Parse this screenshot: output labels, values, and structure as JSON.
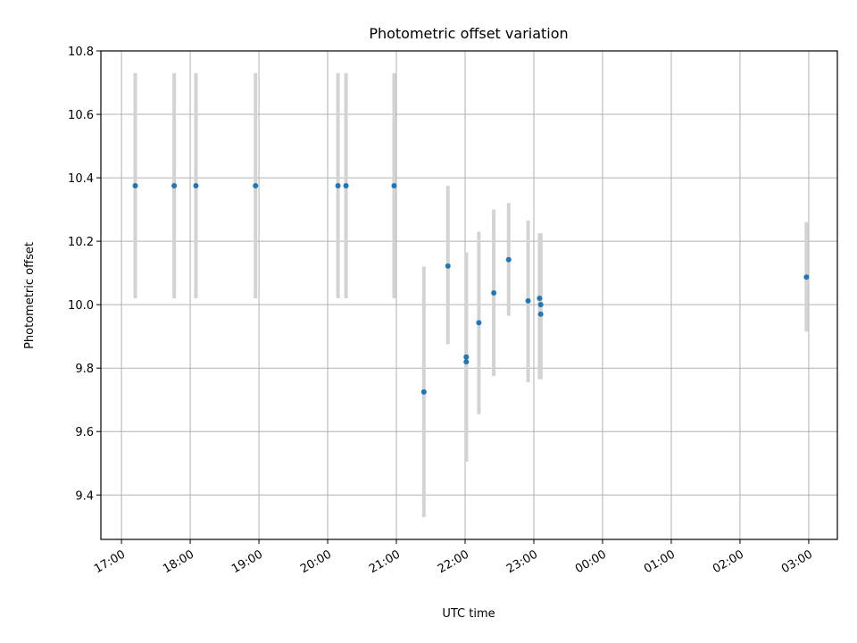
{
  "chart_data": {
    "type": "scatter",
    "title": "Photometric offset variation",
    "xlabel": "UTC time",
    "ylabel": "Photometric offset",
    "x_tick_labels": [
      "17:00",
      "18:00",
      "19:00",
      "20:00",
      "21:00",
      "22:00",
      "23:00",
      "00:00",
      "01:00",
      "02:00",
      "03:00"
    ],
    "y_ticks": [
      9.4,
      9.6,
      9.8,
      10.0,
      10.2,
      10.4,
      10.6,
      10.8
    ],
    "xlim": [
      "16:42",
      "03:25"
    ],
    "ylim": [
      9.26,
      10.8
    ],
    "grid": true,
    "colors": {
      "point": "#1f77b4",
      "errorbar": "#d3d3d3",
      "grid": "#b0b0b0"
    },
    "points": [
      {
        "x": "17:12",
        "y": 10.375,
        "ylo": 10.02,
        "yhi": 10.73
      },
      {
        "x": "17:46",
        "y": 10.375,
        "ylo": 10.02,
        "yhi": 10.73
      },
      {
        "x": "18:05",
        "y": 10.375,
        "ylo": 10.02,
        "yhi": 10.73
      },
      {
        "x": "18:57",
        "y": 10.375,
        "ylo": 10.02,
        "yhi": 10.73
      },
      {
        "x": "20:09",
        "y": 10.375,
        "ylo": 10.02,
        "yhi": 10.73
      },
      {
        "x": "20:16",
        "y": 10.375,
        "ylo": 10.02,
        "yhi": 10.73
      },
      {
        "x": "20:58",
        "y": 10.375,
        "ylo": 10.02,
        "yhi": 10.73
      },
      {
        "x": "21:24",
        "y": 9.725,
        "ylo": 9.33,
        "yhi": 10.12
      },
      {
        "x": "21:45",
        "y": 10.122,
        "ylo": 9.875,
        "yhi": 10.375
      },
      {
        "x": "22:01",
        "y": 9.835,
        "ylo": 9.505,
        "yhi": 10.165
      },
      {
        "x": "22:01",
        "y": 9.82,
        "ylo": 9.505,
        "yhi": 10.165
      },
      {
        "x": "22:12",
        "y": 9.943,
        "ylo": 9.655,
        "yhi": 10.23
      },
      {
        "x": "22:25",
        "y": 10.037,
        "ylo": 9.775,
        "yhi": 10.3
      },
      {
        "x": "22:38",
        "y": 10.142,
        "ylo": 9.965,
        "yhi": 10.32
      },
      {
        "x": "22:55",
        "y": 10.012,
        "ylo": 9.755,
        "yhi": 10.265
      },
      {
        "x": "23:05",
        "y": 10.02,
        "ylo": 9.765,
        "yhi": 10.225
      },
      {
        "x": "23:06",
        "y": 10.0,
        "ylo": 9.765,
        "yhi": 10.225
      },
      {
        "x": "23:06",
        "y": 9.97,
        "ylo": 9.765,
        "yhi": 10.225
      },
      {
        "x": "02:58",
        "y": 10.087,
        "ylo": 9.915,
        "yhi": 10.26
      }
    ]
  }
}
